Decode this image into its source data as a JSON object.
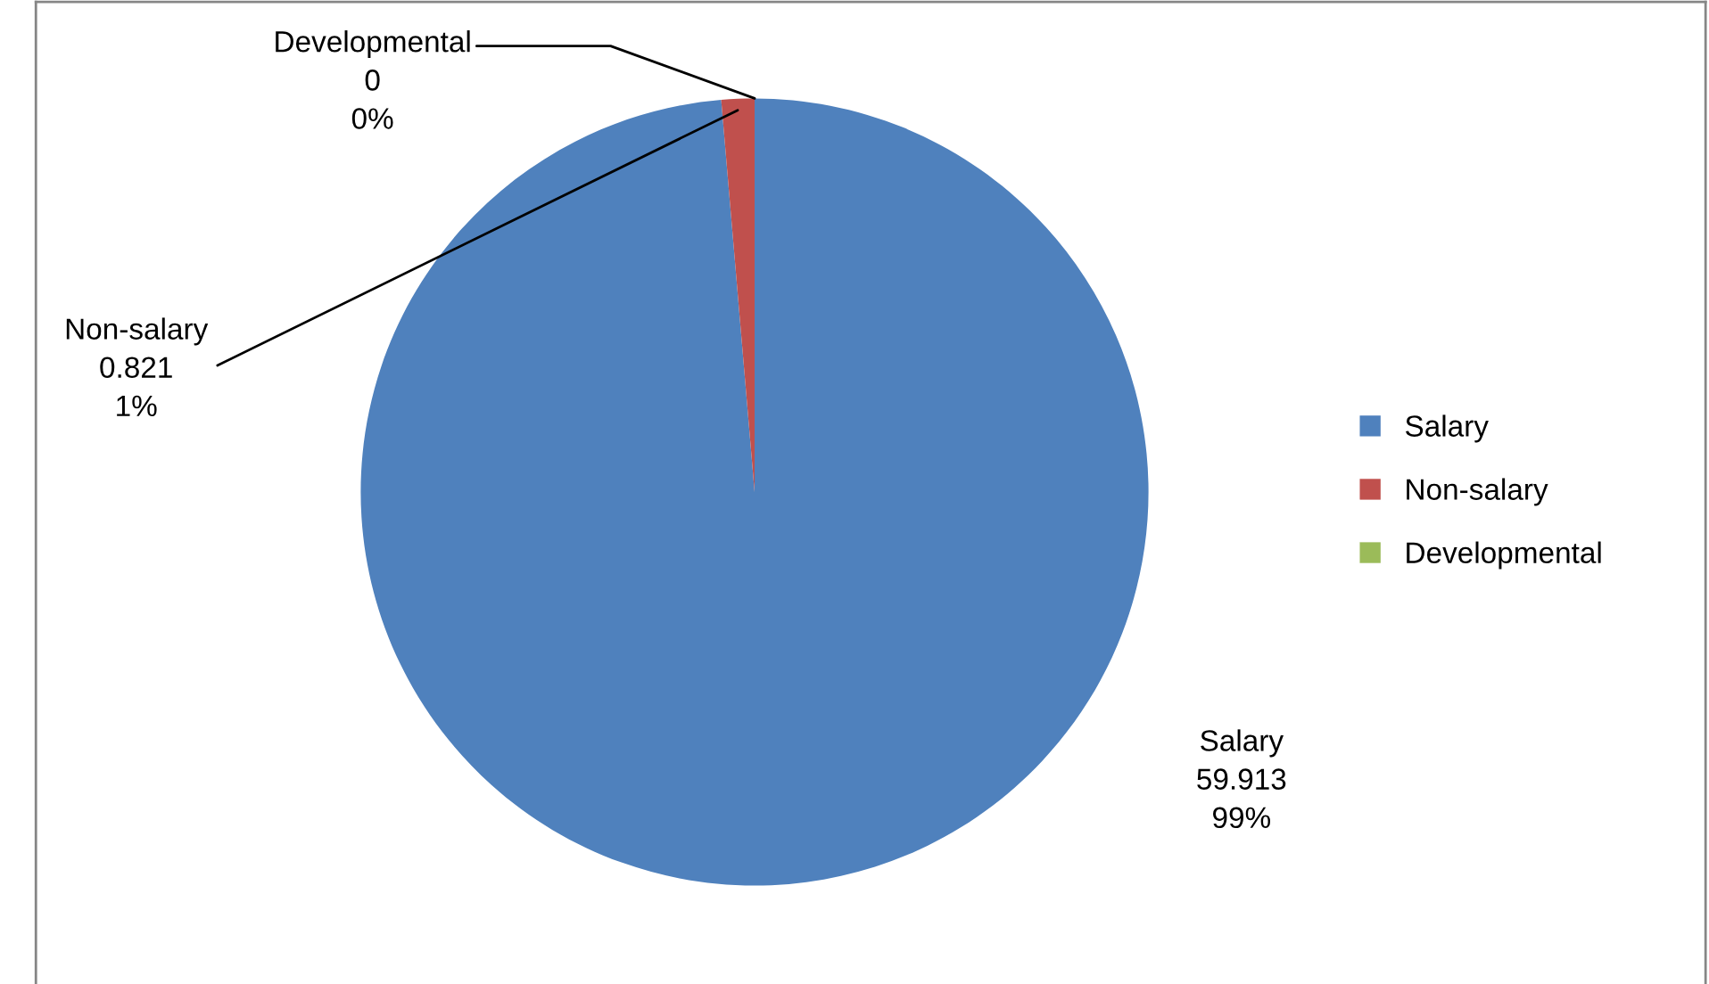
{
  "chart_data": {
    "type": "pie",
    "categories": [
      "Salary",
      "Non-salary",
      "Developmental"
    ],
    "values": [
      59.913,
      0.821,
      0
    ],
    "colors": [
      "#4f81bd",
      "#c0504d",
      "#9bbb59"
    ],
    "value_labels": [
      "59.913\n99%",
      "0.821\n1%",
      "0\n0%"
    ],
    "legend": "right"
  }
}
